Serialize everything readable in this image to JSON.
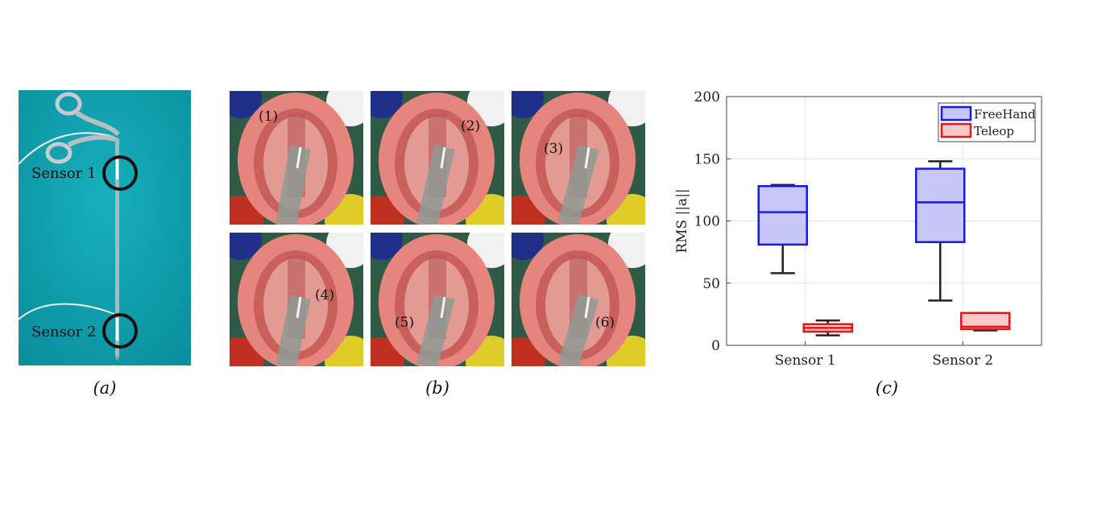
{
  "panel_a": {
    "labels": [
      "Sensor 1",
      "Sensor 2"
    ],
    "caption": "(a)"
  },
  "panel_b": {
    "tiles": [
      "(1)",
      "(2)",
      "(3)",
      "(4)",
      "(5)",
      "(6)"
    ],
    "caption": "(b)"
  },
  "panel_c": {
    "caption": "(c)"
  },
  "chart_data": {
    "type": "box",
    "categories": [
      "Sensor 1",
      "Sensor 2"
    ],
    "ylabel": "RMS ||a||",
    "ylim": [
      0,
      200
    ],
    "yticks": [
      0,
      50,
      100,
      150,
      200
    ],
    "grid": true,
    "legend_position": "top-right",
    "series": [
      {
        "name": "FreeHand",
        "color": "#1a1adc",
        "fill": "#c8c8f8",
        "boxes": [
          {
            "min": 58,
            "q1": 81,
            "median": 107,
            "q3": 128,
            "max": 129
          },
          {
            "min": 36,
            "q1": 83,
            "median": 115,
            "q3": 142,
            "max": 148
          }
        ]
      },
      {
        "name": "Teleop",
        "color": "#e01818",
        "fill": "#f9c8c8",
        "boxes": [
          {
            "min": 8,
            "q1": 11,
            "median": 14,
            "q3": 17,
            "max": 20
          },
          {
            "min": 12,
            "q1": 13,
            "median": 15,
            "q3": 26,
            "max": 26
          }
        ]
      }
    ]
  }
}
